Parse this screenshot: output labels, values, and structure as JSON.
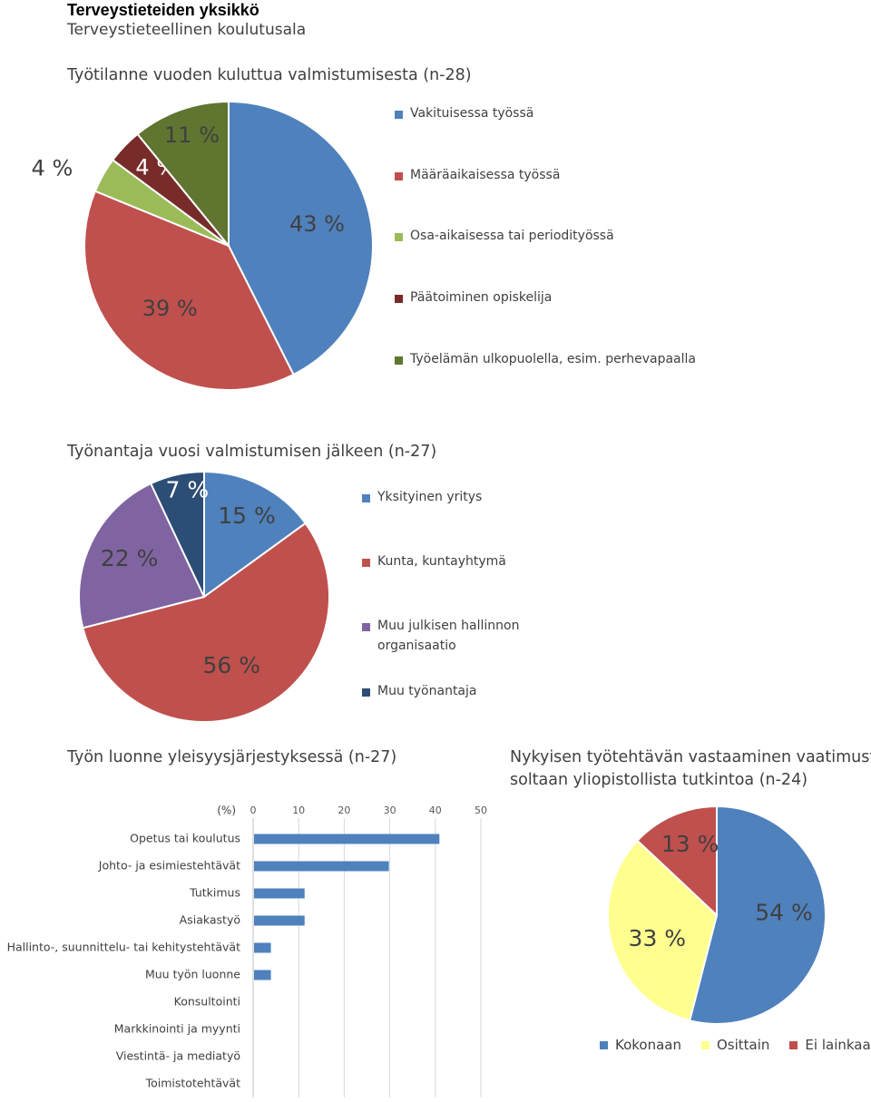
{
  "header": {
    "title": "Terveystieteiden yksikkö",
    "subtitle": "Terveystieteellinen koulutusala"
  },
  "chart_data": [
    {
      "type": "pie",
      "title": "Työtilanne vuoden kuluttua valmistumisesta (n-28)",
      "categories": [
        "Vakituisessa työssä",
        "Määräaikaisessa työssä",
        "Osa-aikaisessa tai periodityössä",
        "Päätoiminen opiskelija",
        "Työelämän ulkopuolella, esim. perhevapaalla"
      ],
      "values": [
        43,
        39,
        4,
        4,
        11
      ],
      "labels": [
        "43 %",
        "39 %",
        "4 %",
        "4 %",
        "11 %"
      ],
      "colors": [
        "#4f81bd",
        "#c0504d",
        "#9bbb59",
        "#772c2a",
        "#5f7530"
      ],
      "legend": "right"
    },
    {
      "type": "pie",
      "title": "Työnantaja vuosi valmistumisen jälkeen (n-27)",
      "categories": [
        "Yksityinen yritys",
        "Kunta, kuntayhtymä",
        "Muu julkisen hallinnon organisaatio",
        "Muu työnantaja"
      ],
      "values": [
        15,
        56,
        22,
        7
      ],
      "labels": [
        "15 %",
        "56 %",
        "22 %",
        "7 %"
      ],
      "colors": [
        "#4f81bd",
        "#c0504d",
        "#8064a2",
        "#2c4d75"
      ],
      "legend": "right"
    },
    {
      "type": "bar",
      "orientation": "horizontal",
      "title": "Työn luonne yleisyysjärjestyksessä (n-27)",
      "unit_label": "(%)",
      "categories": [
        "Opetus tai koulutus",
        "Johto- ja esimiestehtävät",
        "Tutkimus",
        "Asiakastyö",
        "Hallinto-, suunnittelu- tai kehitystehtävät",
        "Muu työn luonne",
        "Konsultointi",
        "Markkinointi ja myynti",
        "Viestintä- ja mediatyö",
        "Toimistotehtävät"
      ],
      "values": [
        40.7,
        29.6,
        11.1,
        11.1,
        3.7,
        3.7,
        0,
        0,
        0,
        0
      ],
      "xlim": [
        0,
        50
      ],
      "xticks": [
        "0",
        "10",
        "20",
        "30",
        "40",
        "50"
      ],
      "color": "#4f81bd",
      "grid": true
    },
    {
      "type": "pie",
      "title_lines": [
        "Nykyisen työtehtävän vastaaminen vaatimusta-",
        "soltaan yliopistollista tutkintoa (n-24)"
      ],
      "categories": [
        "Kokonaan",
        "Osittain",
        "Ei lainkaan"
      ],
      "values": [
        54,
        33,
        13
      ],
      "labels": [
        "54 %",
        "33 %",
        "13 %"
      ],
      "colors": [
        "#4f81bd",
        "#ffff8f",
        "#c0504d"
      ],
      "legend": "bottom"
    }
  ]
}
